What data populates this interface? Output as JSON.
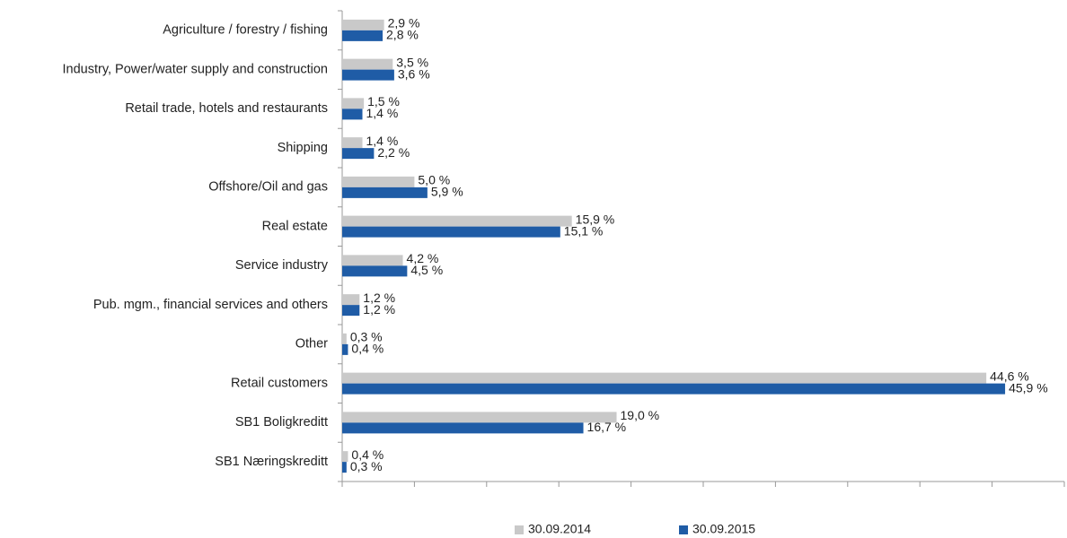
{
  "chart_data": {
    "type": "bar",
    "orientation": "horizontal",
    "categories": [
      "Agriculture / forestry / fishing",
      "Industry, Power/water supply and construction",
      "Retail trade, hotels and restaurants",
      "Shipping",
      "Offshore/Oil and gas",
      "Real estate",
      "Service industry",
      "Pub. mgm., financial services and others",
      "Other",
      "Retail customers",
      "SB1 Boligkreditt",
      "SB1 Næringskreditt"
    ],
    "series": [
      {
        "name": "30.09.2014",
        "color": "#c9c9c9",
        "values": [
          2.9,
          3.5,
          1.5,
          1.4,
          5.0,
          15.9,
          4.2,
          1.2,
          0.3,
          44.6,
          19.0,
          0.4
        ],
        "value_labels": [
          "2,9 %",
          "3,5 %",
          "1,5 %",
          "1,4 %",
          "5,0 %",
          "15,9 %",
          "4,2 %",
          "1,2 %",
          "0,3 %",
          "44,6 %",
          "19,0 %",
          "0,4 %"
        ]
      },
      {
        "name": "30.09.2015",
        "color": "#1f5ca6",
        "values": [
          2.8,
          3.6,
          1.4,
          2.2,
          5.9,
          15.1,
          4.5,
          1.2,
          0.4,
          45.9,
          16.7,
          0.3
        ],
        "value_labels": [
          "2,8 %",
          "3,6 %",
          "1,4 %",
          "2,2 %",
          "5,9 %",
          "15,1 %",
          "4,5 %",
          "1,2 %",
          "0,4 %",
          "45,9 %",
          "16,7 %",
          "0,3 %"
        ]
      }
    ],
    "xlim": [
      0,
      50
    ],
    "xticks": [
      0,
      5,
      10,
      15,
      20,
      25,
      30,
      35,
      40,
      45,
      50
    ],
    "legend": "bottom"
  }
}
